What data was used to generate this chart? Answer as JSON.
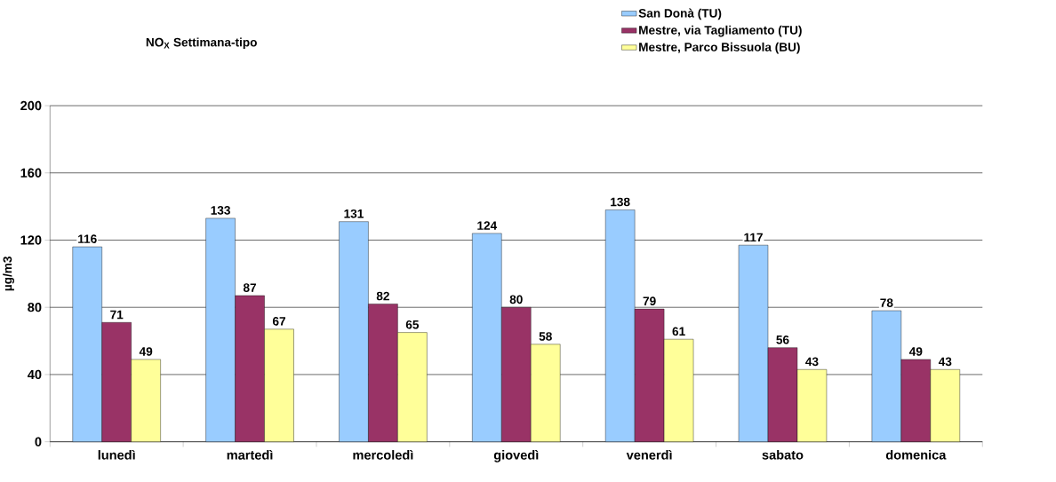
{
  "chart_data": {
    "type": "bar",
    "title": "NO$_{X}$ Settimana-tipo",
    "ylabel": "µg/m3",
    "categories": [
      "lunedì",
      "martedì",
      "mercoledì",
      "giovedì",
      "venerdì",
      "sabato",
      "domenica"
    ],
    "series": [
      {
        "name": "San Donà (TU)",
        "color": "#99ccff",
        "values": [
          116,
          133,
          131,
          124,
          138,
          117,
          78
        ]
      },
      {
        "name": "Mestre, via Tagliamento (TU)",
        "color": "#993366",
        "values": [
          71,
          87,
          82,
          80,
          79,
          56,
          49
        ]
      },
      {
        "name": "Mestre, Parco Bissuola (BU)",
        "color": "#ffff99",
        "values": [
          49,
          67,
          65,
          58,
          61,
          43,
          43
        ]
      }
    ],
    "ylim": [
      0,
      200
    ],
    "yticks": [
      0,
      40,
      80,
      120,
      160,
      200
    ],
    "grid": "y",
    "legend": "top right",
    "data_labels": true
  }
}
